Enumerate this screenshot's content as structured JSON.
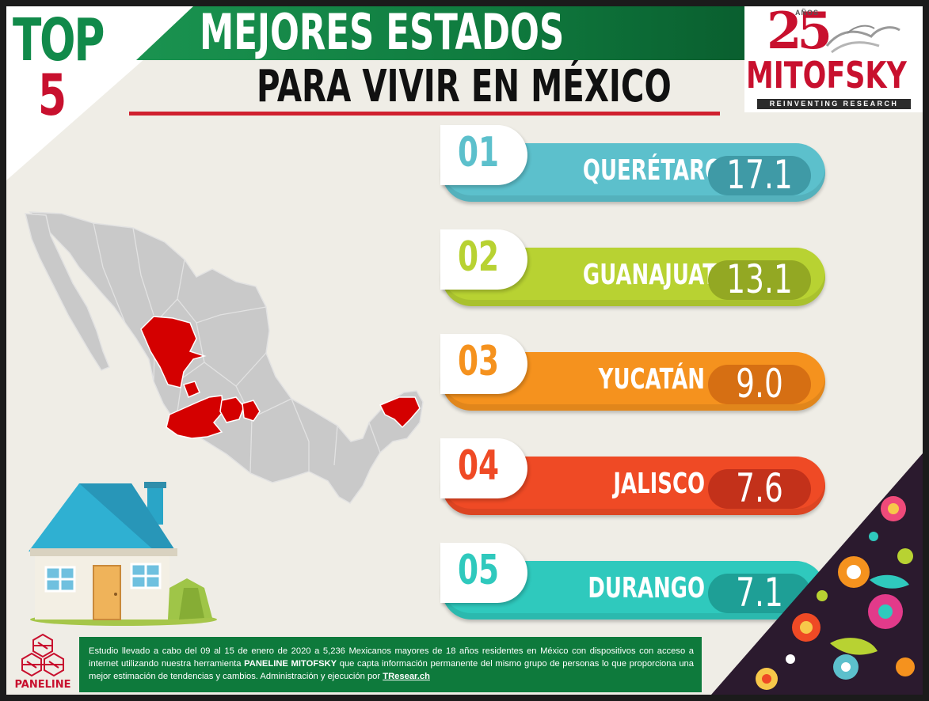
{
  "header": {
    "top_word": "TOP",
    "top_number": "5",
    "title_line1": "MEJORES ESTADOS",
    "title_line2": "PARA VIVIR EN MÉXICO"
  },
  "logo": {
    "anniversary": "25",
    "anniversary_sub": "AÑOS",
    "name": "MITOFSKY",
    "tagline": "REINVENTING RESEARCH"
  },
  "ranking": [
    {
      "rank": "01",
      "state": "QUERÉTARO",
      "value": "17.1",
      "color": "#5cc0cc",
      "dark": "#3f9aa6"
    },
    {
      "rank": "02",
      "state": "GUANAJUATO",
      "value": "13.1",
      "color": "#b8d232",
      "dark": "#93a823"
    },
    {
      "rank": "03",
      "state": "YUCATÁN",
      "value": "9.0",
      "color": "#f5921e",
      "dark": "#d66f13"
    },
    {
      "rank": "04",
      "state": "JALISCO",
      "value": "7.6",
      "color": "#ef4a25",
      "dark": "#c3311a"
    },
    {
      "rank": "05",
      "state": "DURANGO",
      "value": "7.1",
      "color": "#2fc9bd",
      "dark": "#1e9f96"
    }
  ],
  "footer": {
    "brand": "PANELINE",
    "text_part1": "Estudio llevado a cabo del 09 al 15 de enero de 2020 a 5,236 Mexicanos mayores de 18 años residentes en México con dispositivos con acceso a internet utilizando nuestra herramienta ",
    "text_bold": "PANELINE MITOFSKY",
    "text_part2": " que capta información permanente del mismo grupo de personas lo que proporciona una mejor estimación de tendencias y cambios. Administración y ejecución por ",
    "text_link": "TResear.ch"
  },
  "colors": {
    "green": "#118a4a",
    "red": "#c8102e",
    "map_gray": "#c9c9c9",
    "highlight_red": "#d40000"
  }
}
